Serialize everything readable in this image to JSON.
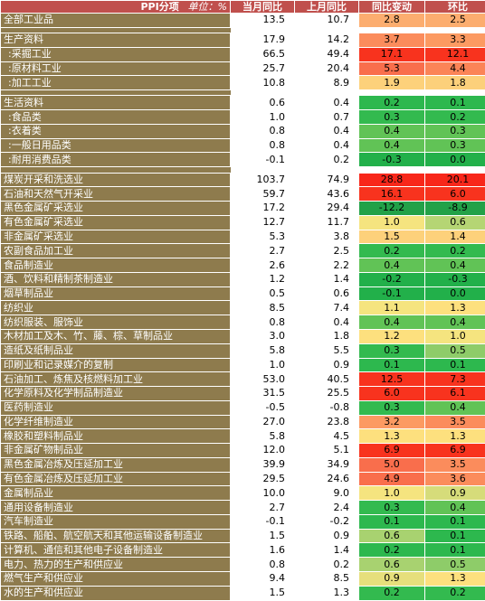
{
  "header": {
    "name": "PPI分项",
    "unit": "单位：%",
    "cur": "当月同比",
    "prev": "上月同比",
    "chg": "同比变动",
    "mom": "环比"
  },
  "colors": {
    "name_bg": "#8e7b4d",
    "header_bg": "#c0504d"
  },
  "rows": [
    {
      "name": "全部工业品",
      "cur": "13.5",
      "prev": "10.7",
      "chg": "2.8",
      "mom": "2.5",
      "chg_color": "#fcad6f",
      "mom_color": "#fcad6f"
    },
    {
      "gap": true
    },
    {
      "name": "生产资料",
      "cur": "17.9",
      "prev": "14.2",
      "chg": "3.7",
      "mom": "3.3",
      "chg_color": "#fb8c5c",
      "mom_color": "#fc9a62"
    },
    {
      "name": ":采掘工业",
      "cur": "66.5",
      "prev": "49.4",
      "chg": "17.1",
      "mom": "12.1",
      "chg_color": "#f8331e",
      "mom_color": "#f8331e",
      "sub": true
    },
    {
      "name": ":原材料工业",
      "cur": "25.7",
      "prev": "20.4",
      "chg": "5.3",
      "mom": "4.4",
      "chg_color": "#f96e4c",
      "mom_color": "#fb8457",
      "sub": true
    },
    {
      "name": ":加工工业",
      "cur": "10.8",
      "prev": "8.9",
      "chg": "1.9",
      "mom": "1.8",
      "chg_color": "#fdd17b",
      "mom_color": "#fcd07b",
      "sub": true
    },
    {
      "gap": true
    },
    {
      "name": "生活资料",
      "cur": "0.6",
      "prev": "0.4",
      "chg": "0.2",
      "mom": "0.1",
      "chg_color": "#2db84e",
      "mom_color": "#2db84e"
    },
    {
      "name": ":食品类",
      "cur": "1.0",
      "prev": "0.7",
      "chg": "0.3",
      "mom": "0.2",
      "chg_color": "#33ba4f",
      "mom_color": "#33ba4f",
      "sub": true
    },
    {
      "name": ":衣着类",
      "cur": "0.8",
      "prev": "0.4",
      "chg": "0.4",
      "mom": "0.3",
      "chg_color": "#61c356",
      "mom_color": "#61c356",
      "sub": true
    },
    {
      "name": ":一般日用品类",
      "cur": "0.8",
      "prev": "0.4",
      "chg": "0.4",
      "mom": "0.3",
      "chg_color": "#61c356",
      "mom_color": "#61c356",
      "sub": true
    },
    {
      "name": ":耐用消费品类",
      "cur": "-0.1",
      "prev": "0.2",
      "chg": "-0.3",
      "mom": "0.0",
      "chg_color": "#22b04a",
      "mom_color": "#22b04a",
      "sub": true
    },
    {
      "gap": true
    },
    {
      "name": "煤炭开采和洗选业",
      "cur": "103.7",
      "prev": "74.9",
      "chg": "28.8",
      "mom": "20.1",
      "chg_color": "#f8271a",
      "mom_color": "#f8271a"
    },
    {
      "name": "石油和天然气开采业",
      "cur": "59.7",
      "prev": "43.6",
      "chg": "16.1",
      "mom": "6.0",
      "chg_color": "#f8331e",
      "mom_color": "#f8331e"
    },
    {
      "name": "黑色金属矿采选业",
      "cur": "17.2",
      "prev": "29.4",
      "chg": "-12.2",
      "mom": "-8.9",
      "chg_color": "#22a148",
      "mom_color": "#22a148"
    },
    {
      "name": "有色金属矿采选业",
      "cur": "12.7",
      "prev": "11.7",
      "chg": "1.0",
      "mom": "0.6",
      "chg_color": "#f5e47f",
      "mom_color": "#b5d574"
    },
    {
      "name": "非金属矿采选业",
      "cur": "5.3",
      "prev": "3.8",
      "chg": "1.5",
      "mom": "1.4",
      "chg_color": "#fdd17b",
      "mom_color": "#fdd17b"
    },
    {
      "name": "农副食品加工业",
      "cur": "2.7",
      "prev": "2.5",
      "chg": "0.2",
      "mom": "0.2",
      "chg_color": "#33ba4f",
      "mom_color": "#33ba4f"
    },
    {
      "name": "食品制造业",
      "cur": "2.6",
      "prev": "2.2",
      "chg": "0.4",
      "mom": "0.4",
      "chg_color": "#61c356",
      "mom_color": "#61c356"
    },
    {
      "name": "酒、饮料和精制茶制造业",
      "cur": "1.2",
      "prev": "1.4",
      "chg": "-0.2",
      "mom": "-0.3",
      "chg_color": "#22b04a",
      "mom_color": "#22b04a"
    },
    {
      "name": "烟草制品业",
      "cur": "0.5",
      "prev": "0.6",
      "chg": "-0.1",
      "mom": "0.0",
      "chg_color": "#22b04a",
      "mom_color": "#22b04a"
    },
    {
      "name": "纺织业",
      "cur": "8.5",
      "prev": "7.4",
      "chg": "1.1",
      "mom": "1.3",
      "chg_color": "#f5e47f",
      "mom_color": "#fde07e"
    },
    {
      "name": "纺织服装、服饰业",
      "cur": "0.8",
      "prev": "0.4",
      "chg": "0.4",
      "mom": "0.4",
      "chg_color": "#61c356",
      "mom_color": "#61c356"
    },
    {
      "name": "木材加工及木、竹、藤、棕、草制品业",
      "cur": "3.0",
      "prev": "1.8",
      "chg": "1.2",
      "mom": "1.0",
      "chg_color": "#fde07e",
      "mom_color": "#f5e47f"
    },
    {
      "name": "造纸及纸制品业",
      "cur": "5.8",
      "prev": "5.5",
      "chg": "0.3",
      "mom": "0.5",
      "chg_color": "#33ba4f",
      "mom_color": "#8ecc69"
    },
    {
      "name": "印刷业和记录媒介的复制",
      "cur": "1.0",
      "prev": "0.9",
      "chg": "0.1",
      "mom": "0.1",
      "chg_color": "#2db84e",
      "mom_color": "#2db84e"
    },
    {
      "name": "石油加工、炼焦及核燃料加工业",
      "cur": "53.0",
      "prev": "40.5",
      "chg": "12.5",
      "mom": "7.3",
      "chg_color": "#f8331e",
      "mom_color": "#f8331e"
    },
    {
      "name": "化学原料及化学制品制造业",
      "cur": "31.5",
      "prev": "25.5",
      "chg": "6.0",
      "mom": "6.1",
      "chg_color": "#f8331e",
      "mom_color": "#f8331e"
    },
    {
      "name": "医药制造业",
      "cur": "-0.5",
      "prev": "-0.8",
      "chg": "0.3",
      "mom": "0.4",
      "chg_color": "#33ba4f",
      "mom_color": "#61c356"
    },
    {
      "name": "化学纤维制造业",
      "cur": "27.0",
      "prev": "23.8",
      "chg": "3.2",
      "mom": "3.5",
      "chg_color": "#fc9a62",
      "mom_color": "#fb8c5c"
    },
    {
      "name": "橡胶和塑料制品业",
      "cur": "5.8",
      "prev": "4.5",
      "chg": "1.3",
      "mom": "1.3",
      "chg_color": "#fde07e",
      "mom_color": "#fde07e"
    },
    {
      "name": "非金属矿物制品业",
      "cur": "12.0",
      "prev": "5.1",
      "chg": "6.9",
      "mom": "6.9",
      "chg_color": "#f8331e",
      "mom_color": "#f8331e"
    },
    {
      "name": "黑色金属冶炼及压延加工业",
      "cur": "39.9",
      "prev": "34.9",
      "chg": "5.0",
      "mom": "3.5",
      "chg_color": "#f96e4c",
      "mom_color": "#fb8c5c"
    },
    {
      "name": "有色金属冶炼及压延加工业",
      "cur": "29.5",
      "prev": "24.6",
      "chg": "4.9",
      "mom": "3.6",
      "chg_color": "#f96e4c",
      "mom_color": "#fb8c5c"
    },
    {
      "name": "金属制品业",
      "cur": "10.0",
      "prev": "9.0",
      "chg": "1.0",
      "mom": "0.9",
      "chg_color": "#f5e47f",
      "mom_color": "#d6dc7a"
    },
    {
      "name": "通用设备制造业",
      "cur": "2.7",
      "prev": "2.4",
      "chg": "0.3",
      "mom": "0.4",
      "chg_color": "#33ba4f",
      "mom_color": "#61c356"
    },
    {
      "name": "汽车制造业",
      "cur": "-0.1",
      "prev": "-0.2",
      "chg": "0.1",
      "mom": "0.1",
      "chg_color": "#2db84e",
      "mom_color": "#2db84e"
    },
    {
      "name": "铁路、船舶、航空航天和其他运输设备制造业",
      "cur": "1.5",
      "prev": "0.9",
      "chg": "0.6",
      "mom": "0.1",
      "chg_color": "#a8d270",
      "mom_color": "#2db84e"
    },
    {
      "name": "计算机、通信和其他电子设备制造业",
      "cur": "1.6",
      "prev": "1.4",
      "chg": "0.2",
      "mom": "0.1",
      "chg_color": "#2db84e",
      "mom_color": "#2db84e"
    },
    {
      "name": "电力、热力的生产和供应业",
      "cur": "0.8",
      "prev": "0.2",
      "chg": "0.6",
      "mom": "0.5",
      "chg_color": "#a8d270",
      "mom_color": "#8ecc69"
    },
    {
      "name": "燃气生产和供应业",
      "cur": "9.4",
      "prev": "8.5",
      "chg": "0.9",
      "mom": "1.3",
      "chg_color": "#e6df7c",
      "mom_color": "#fde07e"
    },
    {
      "name": "水的生产和供应业",
      "cur": "1.5",
      "prev": "1.3",
      "chg": "0.2",
      "mom": "0.2",
      "chg_color": "#33ba4f",
      "mom_color": "#33ba4f"
    }
  ]
}
